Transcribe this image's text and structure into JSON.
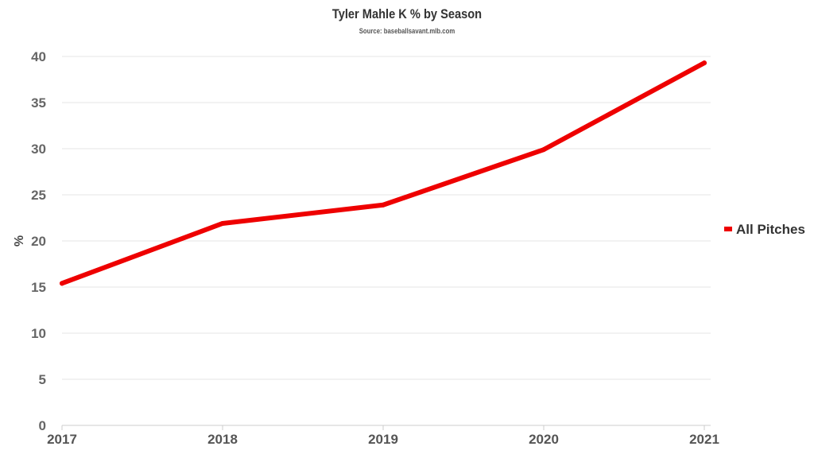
{
  "chart_data": {
    "type": "line",
    "title": "Tyler Mahle K % by Season",
    "subtitle": "Source: baseballsavant.mlb.com",
    "xlabel": "",
    "ylabel": "%",
    "x": [
      2017,
      2018,
      2019,
      2020,
      2021
    ],
    "series": [
      {
        "name": "All Pitches",
        "values": [
          15.4,
          21.9,
          23.9,
          29.9,
          39.3
        ],
        "color": "#ee0000"
      }
    ],
    "ylim": [
      0,
      40
    ],
    "yticks": [
      0,
      5,
      10,
      15,
      20,
      25,
      30,
      35,
      40
    ],
    "xticks": [
      "2017",
      "2018",
      "2019",
      "2020",
      "2021"
    ],
    "grid": true,
    "legend_position": "right"
  }
}
